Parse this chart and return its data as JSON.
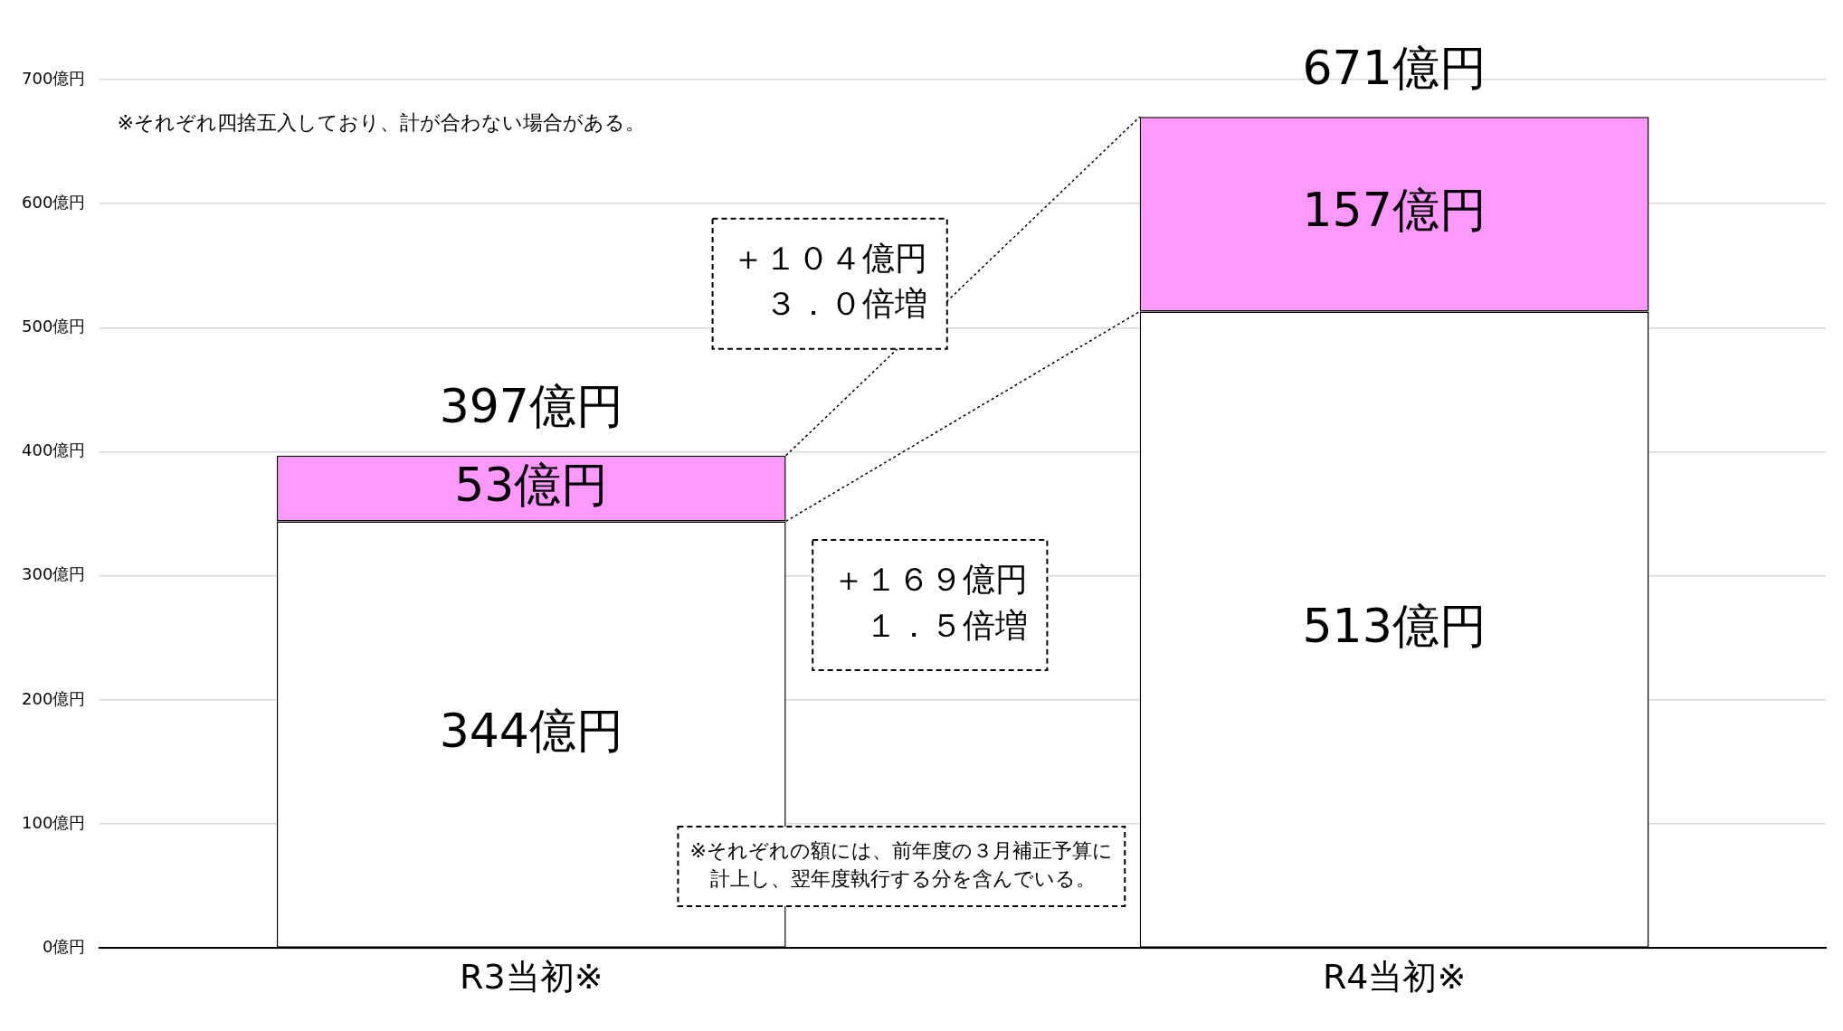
{
  "chart_data": {
    "type": "bar",
    "stacked": true,
    "categories": [
      "R3当初※",
      "R4当初※"
    ],
    "series": [
      {
        "color": "#ffffff",
        "values": [
          344,
          513
        ],
        "value_labels": [
          "344億円",
          "513億円"
        ]
      },
      {
        "color": "#ff99ff",
        "values": [
          53,
          157
        ],
        "value_labels": [
          "53億円",
          "157億円"
        ]
      }
    ],
    "totals": [
      "397億円",
      "671億円"
    ],
    "ylim": [
      0,
      700
    ],
    "yticks": [
      {
        "value": 0,
        "label": "0億円"
      },
      {
        "value": 100,
        "label": "100億円"
      },
      {
        "value": 200,
        "label": "200億円"
      },
      {
        "value": 300,
        "label": "300億円"
      },
      {
        "value": 400,
        "label": "400億円"
      },
      {
        "value": 500,
        "label": "500億円"
      },
      {
        "value": 600,
        "label": "600億円"
      },
      {
        "value": 700,
        "label": "700億円"
      }
    ],
    "grid": "y",
    "legend": false,
    "annotations": [
      "※それぞれ四捨五入しており、計が合わない場合がある。",
      "＋１０４億円",
      "３．０倍増",
      "＋１６９億円",
      "１．５倍増",
      "※それぞれの額には、前年度の３月補正予算に計上し、翌年度執行する分を含んでいる。"
    ]
  }
}
